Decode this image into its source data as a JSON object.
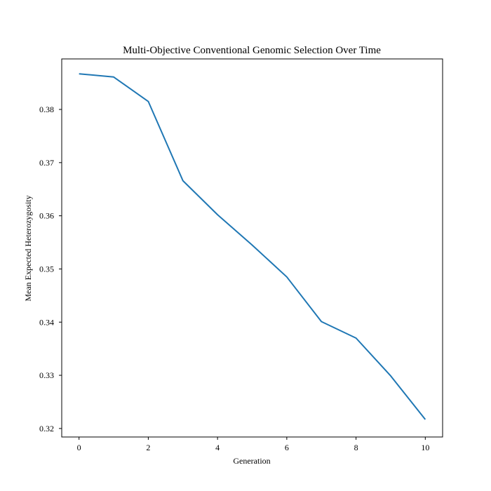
{
  "chart_data": {
    "type": "line",
    "title": "Multi-Objective Conventional Genomic Selection Over Time",
    "xlabel": "Generation",
    "ylabel": "Mean Expected Heterozygosity",
    "xlim": [
      -0.5,
      10.5
    ],
    "ylim": [
      0.3184,
      0.3895
    ],
    "x_ticks": [
      0,
      2,
      4,
      6,
      8,
      10
    ],
    "y_ticks": [
      0.32,
      0.33,
      0.34,
      0.35,
      0.36,
      0.37,
      0.38
    ],
    "grid": false,
    "legend": "none",
    "series": [
      {
        "color": "#1f77b4",
        "x": [
          0,
          1,
          2,
          3,
          4,
          5,
          6,
          7,
          8,
          9,
          10
        ],
        "y": [
          0.3867,
          0.3861,
          0.3815,
          0.3666,
          0.3602,
          0.3545,
          0.3485,
          0.3401,
          0.337,
          0.3299,
          0.3217
        ]
      }
    ]
  }
}
